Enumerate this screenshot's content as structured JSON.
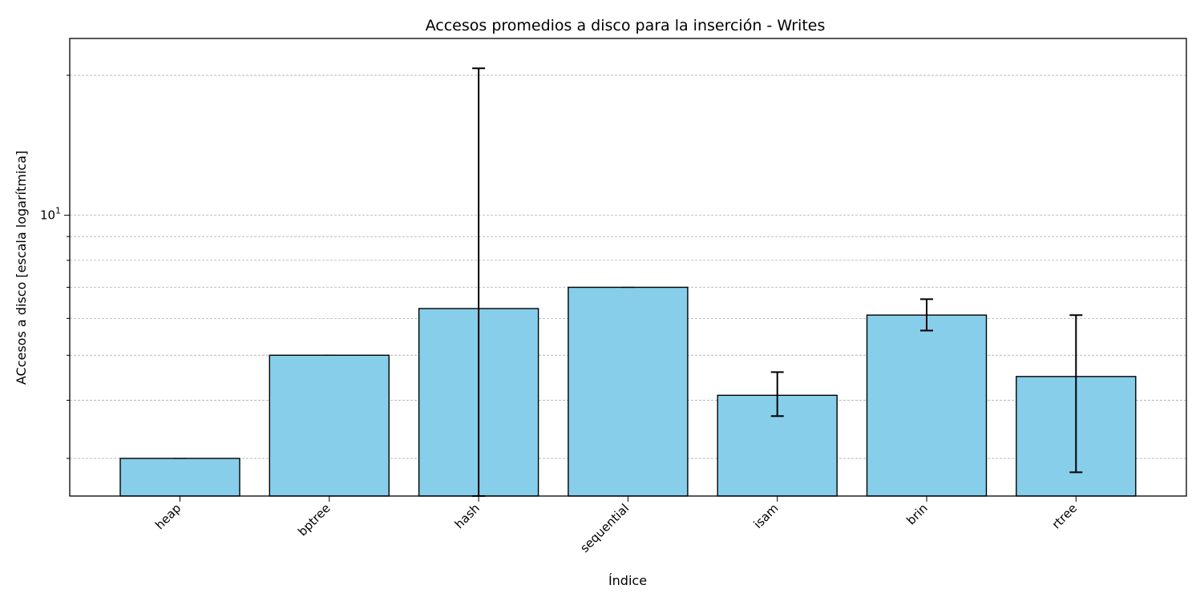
{
  "chart_data": {
    "type": "bar",
    "title": "Accesos promedios a disco para la inserción - Writes",
    "xlabel": "Índice",
    "ylabel": "ACcesos a disco [escala logarítmica]",
    "yscale": "log",
    "ylim": [
      2.49,
      24
    ],
    "y_tick_labels": [
      {
        "value": 10,
        "base": "10",
        "exp": "1"
      }
    ],
    "y_minor_gridlines": [
      3,
      4,
      5,
      6,
      7,
      8,
      9,
      20
    ],
    "categories": [
      "heap",
      "bptree",
      "hash",
      "sequential",
      "isam",
      "brin",
      "rtree"
    ],
    "values": [
      3.0,
      5.0,
      6.3,
      7.0,
      4.1,
      6.1,
      4.5
    ],
    "error_low": [
      3.0,
      5.0,
      2.49,
      7.0,
      3.7,
      5.65,
      2.8
    ],
    "error_high": [
      3.0,
      5.0,
      20.7,
      7.0,
      4.6,
      6.6,
      6.1
    ],
    "bar_color": "#87ceeb",
    "bar_edge_color": "#000000",
    "grid": "y-dashed",
    "legend": "none"
  }
}
